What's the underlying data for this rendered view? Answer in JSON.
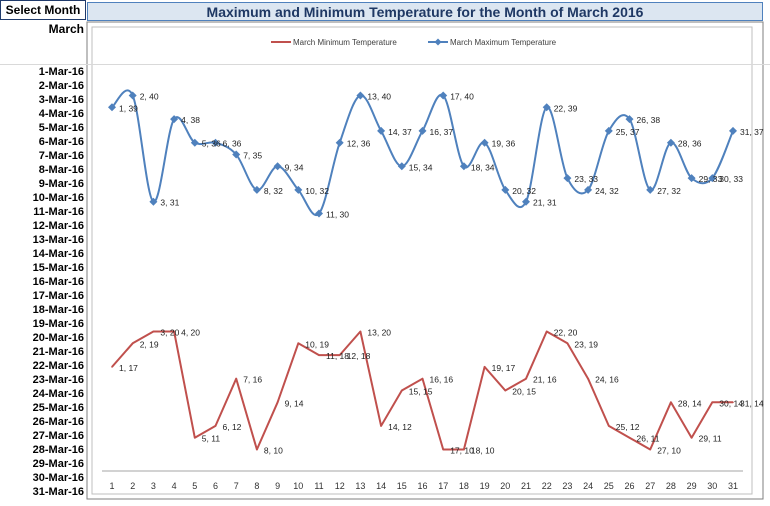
{
  "header": {
    "select_month_label": "Select Month",
    "title": "Maximum and Minimum Temperature for the Month of March 2016",
    "month": "March"
  },
  "row_labels": [
    "1-Mar-16",
    "2-Mar-16",
    "3-Mar-16",
    "4-Mar-16",
    "5-Mar-16",
    "6-Mar-16",
    "7-Mar-16",
    "8-Mar-16",
    "9-Mar-16",
    "10-Mar-16",
    "11-Mar-16",
    "12-Mar-16",
    "13-Mar-16",
    "14-Mar-16",
    "15-Mar-16",
    "16-Mar-16",
    "17-Mar-16",
    "18-Mar-16",
    "19-Mar-16",
    "20-Mar-16",
    "21-Mar-16",
    "22-Mar-16",
    "23-Mar-16",
    "24-Mar-16",
    "25-Mar-16",
    "26-Mar-16",
    "27-Mar-16",
    "28-Mar-16",
    "29-Mar-16",
    "30-Mar-16",
    "31-Mar-16"
  ],
  "colors": {
    "min": "#c0504d",
    "max": "#4f81bd",
    "title_bg": "#dce6f1",
    "title_text": "#1f3864"
  },
  "chart_data": {
    "type": "line",
    "categories": [
      1,
      2,
      3,
      4,
      5,
      6,
      7,
      8,
      9,
      10,
      11,
      12,
      13,
      14,
      15,
      16,
      17,
      18,
      19,
      20,
      21,
      22,
      23,
      24,
      25,
      26,
      27,
      28,
      29,
      30,
      31
    ],
    "legend_position": "top",
    "grid": false,
    "series": [
      {
        "name": "March Minimum Temperature",
        "values": [
          17,
          19,
          20,
          20,
          11,
          12,
          16,
          10,
          14,
          19,
          18,
          18,
          20,
          12,
          15,
          16,
          10,
          10,
          17,
          15,
          16,
          20,
          19,
          16,
          12,
          11,
          10,
          14,
          11,
          14,
          14
        ],
        "line": "straight",
        "color": "#c0504d"
      },
      {
        "name": "March Maximum Temperature",
        "values": [
          39,
          40,
          31,
          38,
          36,
          36,
          35,
          32,
          34,
          32,
          30,
          36,
          40,
          37,
          34,
          37,
          40,
          34,
          36,
          32,
          31,
          39,
          33,
          32,
          37,
          38,
          32,
          36,
          33,
          33,
          37
        ],
        "line": "smooth",
        "color": "#4f81bd",
        "marker": "diamond"
      }
    ],
    "data_labels": {
      "min": [
        "1, 17",
        "2, 19",
        "3, 20",
        "4, 20",
        "5, 11",
        "6, 12",
        "7, 16",
        "8, 10",
        "9, 14",
        "10, 19",
        "11, 18",
        "12, 18",
        "13, 20",
        "14, 12",
        "15, 15",
        "16, 16",
        "17, 10",
        "18, 10",
        "19, 17",
        "20, 15",
        "21, 16",
        "22, 20",
        "23, 19",
        "24, 16",
        "25, 12",
        "26, 11",
        "27, 10",
        "28, 14",
        "29, 11",
        "30, 14",
        "31, 14"
      ],
      "max": [
        "1, 39",
        "2, 40",
        "3, 31",
        "4, 38",
        "5, 36",
        "6, 36",
        "7, 35",
        "8, 32",
        "9, 34",
        "10, 32",
        "11, 30",
        "12, 36",
        "13, 40",
        "14, 37",
        "15, 34",
        "16, 37",
        "17, 40",
        "18, 34",
        "19, 36",
        "20, 32",
        "21, 31",
        "22, 39",
        "23, 33",
        "24, 32",
        "25, 37",
        "26, 38",
        "27, 32",
        "28, 36",
        "29, 33",
        "30, 33",
        "31, 37"
      ]
    }
  }
}
